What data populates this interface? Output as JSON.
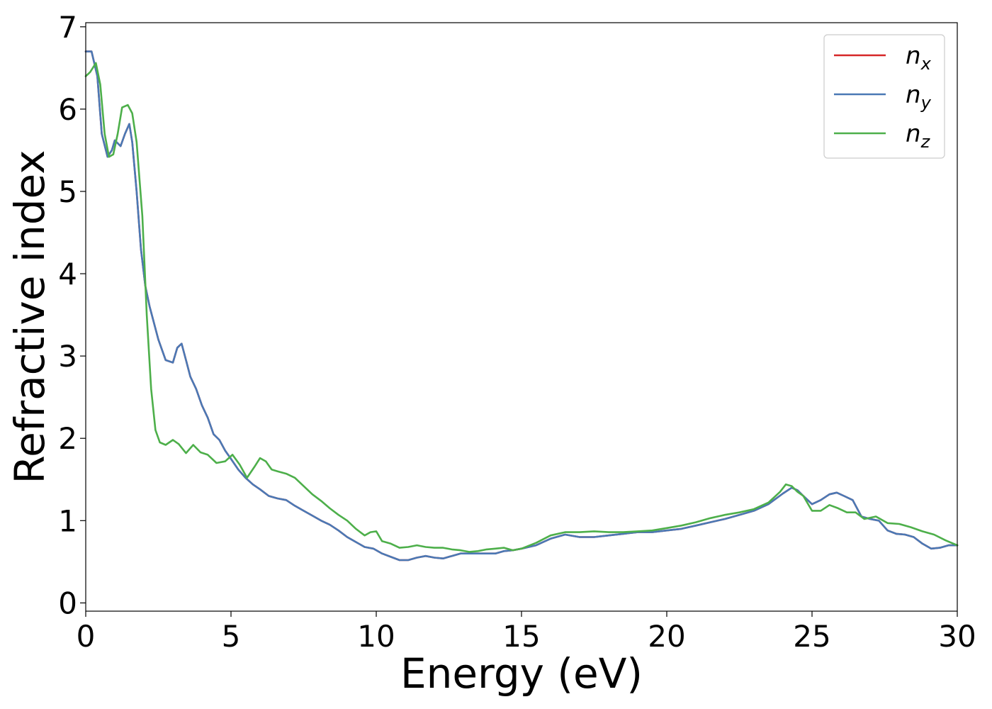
{
  "chart_data": {
    "type": "line",
    "xlabel": "Energy (eV)",
    "ylabel": "Refractive index",
    "xlim": [
      0,
      30
    ],
    "ylim": [
      -0.1,
      7.05
    ],
    "xticks": [
      0,
      5,
      10,
      15,
      20,
      25,
      30
    ],
    "yticks": [
      0,
      1,
      2,
      3,
      4,
      5,
      6,
      7
    ],
    "grid": false,
    "legend_position": "top-right",
    "series": [
      {
        "name": "n_x",
        "label_base": "n",
        "label_sub": "x",
        "color": "#d62728",
        "x": [
          0,
          0.2,
          0.4,
          0.55,
          0.75,
          0.9,
          1.0,
          1.2,
          1.35,
          1.5,
          1.6,
          1.75,
          1.9,
          2.05,
          2.2,
          2.5,
          2.75,
          3.0,
          3.15,
          3.3,
          3.45,
          3.6,
          3.8,
          4.0,
          4.2,
          4.4,
          4.6,
          4.8,
          5.0,
          5.25,
          5.5,
          5.75,
          6.0,
          6.3,
          6.6,
          6.9,
          7.2,
          7.5,
          7.8,
          8.1,
          8.4,
          8.7,
          9.0,
          9.3,
          9.6,
          9.9,
          10.2,
          10.5,
          10.8,
          11.1,
          11.4,
          11.7,
          12.0,
          12.3,
          12.6,
          12.9,
          13.2,
          13.5,
          13.8,
          14.1,
          14.4,
          14.7,
          15.0,
          15.5,
          16.0,
          16.5,
          17.0,
          17.5,
          18.0,
          18.5,
          19.0,
          19.5,
          20.0,
          20.5,
          21.0,
          21.5,
          22.0,
          22.5,
          23.0,
          23.5,
          24.0,
          24.3,
          24.5,
          24.7,
          25.0,
          25.3,
          25.6,
          25.85,
          26.1,
          26.4,
          26.7,
          27.0,
          27.3,
          27.6,
          27.9,
          28.2,
          28.5,
          28.8,
          29.1,
          29.4,
          29.7,
          30.0
        ],
        "values": [
          6.7,
          6.7,
          6.4,
          5.7,
          5.42,
          5.5,
          5.62,
          5.55,
          5.7,
          5.82,
          5.6,
          5.0,
          4.3,
          3.85,
          3.6,
          3.2,
          2.95,
          2.92,
          3.1,
          3.15,
          2.95,
          2.75,
          2.6,
          2.4,
          2.25,
          2.05,
          1.98,
          1.85,
          1.75,
          1.62,
          1.52,
          1.44,
          1.38,
          1.3,
          1.27,
          1.25,
          1.18,
          1.12,
          1.06,
          1.0,
          0.95,
          0.88,
          0.8,
          0.74,
          0.68,
          0.66,
          0.6,
          0.56,
          0.52,
          0.52,
          0.55,
          0.57,
          0.55,
          0.54,
          0.57,
          0.6,
          0.6,
          0.6,
          0.6,
          0.6,
          0.63,
          0.64,
          0.66,
          0.7,
          0.78,
          0.83,
          0.8,
          0.8,
          0.82,
          0.84,
          0.86,
          0.86,
          0.88,
          0.9,
          0.94,
          0.98,
          1.02,
          1.07,
          1.12,
          1.2,
          1.33,
          1.4,
          1.37,
          1.3,
          1.2,
          1.25,
          1.32,
          1.34,
          1.3,
          1.25,
          1.05,
          1.02,
          1.0,
          0.88,
          0.84,
          0.83,
          0.8,
          0.72,
          0.66,
          0.67,
          0.7,
          0.7
        ]
      },
      {
        "name": "n_y",
        "label_base": "n",
        "label_sub": "y",
        "color": "#4a79b5",
        "x": [
          0,
          0.2,
          0.4,
          0.55,
          0.75,
          0.9,
          1.0,
          1.2,
          1.35,
          1.5,
          1.6,
          1.75,
          1.9,
          2.05,
          2.2,
          2.5,
          2.75,
          3.0,
          3.15,
          3.3,
          3.45,
          3.6,
          3.8,
          4.0,
          4.2,
          4.4,
          4.6,
          4.8,
          5.0,
          5.25,
          5.5,
          5.75,
          6.0,
          6.3,
          6.6,
          6.9,
          7.2,
          7.5,
          7.8,
          8.1,
          8.4,
          8.7,
          9.0,
          9.3,
          9.6,
          9.9,
          10.2,
          10.5,
          10.8,
          11.1,
          11.4,
          11.7,
          12.0,
          12.3,
          12.6,
          12.9,
          13.2,
          13.5,
          13.8,
          14.1,
          14.4,
          14.7,
          15.0,
          15.5,
          16.0,
          16.5,
          17.0,
          17.5,
          18.0,
          18.5,
          19.0,
          19.5,
          20.0,
          20.5,
          21.0,
          21.5,
          22.0,
          22.5,
          23.0,
          23.5,
          24.0,
          24.3,
          24.5,
          24.7,
          25.0,
          25.3,
          25.6,
          25.85,
          26.1,
          26.4,
          26.7,
          27.0,
          27.3,
          27.6,
          27.9,
          28.2,
          28.5,
          28.8,
          29.1,
          29.4,
          29.7,
          30.0
        ],
        "values": [
          6.7,
          6.7,
          6.4,
          5.7,
          5.42,
          5.5,
          5.62,
          5.55,
          5.7,
          5.82,
          5.6,
          5.0,
          4.3,
          3.85,
          3.6,
          3.2,
          2.95,
          2.92,
          3.1,
          3.15,
          2.95,
          2.75,
          2.6,
          2.4,
          2.25,
          2.05,
          1.98,
          1.85,
          1.75,
          1.62,
          1.52,
          1.44,
          1.38,
          1.3,
          1.27,
          1.25,
          1.18,
          1.12,
          1.06,
          1.0,
          0.95,
          0.88,
          0.8,
          0.74,
          0.68,
          0.66,
          0.6,
          0.56,
          0.52,
          0.52,
          0.55,
          0.57,
          0.55,
          0.54,
          0.57,
          0.6,
          0.6,
          0.6,
          0.6,
          0.6,
          0.63,
          0.64,
          0.66,
          0.7,
          0.78,
          0.83,
          0.8,
          0.8,
          0.82,
          0.84,
          0.86,
          0.86,
          0.88,
          0.9,
          0.94,
          0.98,
          1.02,
          1.07,
          1.12,
          1.2,
          1.33,
          1.4,
          1.37,
          1.3,
          1.2,
          1.25,
          1.32,
          1.34,
          1.3,
          1.25,
          1.05,
          1.02,
          1.0,
          0.88,
          0.84,
          0.83,
          0.8,
          0.72,
          0.66,
          0.67,
          0.7,
          0.7
        ]
      },
      {
        "name": "n_z",
        "label_base": "n",
        "label_sub": "z",
        "color": "#4daf4a",
        "x": [
          0,
          0.15,
          0.35,
          0.5,
          0.65,
          0.8,
          0.95,
          1.1,
          1.25,
          1.45,
          1.6,
          1.75,
          1.95,
          2.1,
          2.25,
          2.4,
          2.55,
          2.75,
          3.0,
          3.2,
          3.45,
          3.7,
          3.95,
          4.2,
          4.5,
          4.8,
          5.05,
          5.3,
          5.55,
          5.8,
          6.0,
          6.2,
          6.4,
          6.6,
          6.9,
          7.2,
          7.5,
          7.8,
          8.1,
          8.4,
          8.7,
          9.0,
          9.3,
          9.6,
          9.8,
          10.0,
          10.2,
          10.5,
          10.8,
          11.1,
          11.4,
          11.7,
          12.0,
          12.3,
          12.6,
          12.9,
          13.2,
          13.5,
          13.8,
          14.1,
          14.4,
          14.7,
          15.0,
          15.5,
          16.0,
          16.5,
          17.0,
          17.5,
          18.0,
          18.5,
          19.0,
          19.5,
          20.0,
          20.5,
          21.0,
          21.5,
          22.0,
          22.5,
          23.0,
          23.5,
          23.9,
          24.1,
          24.3,
          24.5,
          24.7,
          25.0,
          25.3,
          25.6,
          25.9,
          26.2,
          26.5,
          26.8,
          27.2,
          27.6,
          28.0,
          28.4,
          28.8,
          29.2,
          29.6,
          30.0
        ],
        "values": [
          6.4,
          6.45,
          6.56,
          6.3,
          5.7,
          5.42,
          5.45,
          5.7,
          6.02,
          6.05,
          5.95,
          5.6,
          4.7,
          3.5,
          2.6,
          2.1,
          1.95,
          1.92,
          1.98,
          1.93,
          1.82,
          1.92,
          1.83,
          1.8,
          1.7,
          1.72,
          1.8,
          1.68,
          1.52,
          1.65,
          1.76,
          1.72,
          1.62,
          1.6,
          1.57,
          1.52,
          1.42,
          1.32,
          1.24,
          1.15,
          1.07,
          1.0,
          0.9,
          0.82,
          0.86,
          0.87,
          0.75,
          0.72,
          0.67,
          0.68,
          0.7,
          0.68,
          0.67,
          0.67,
          0.65,
          0.64,
          0.62,
          0.63,
          0.65,
          0.66,
          0.67,
          0.64,
          0.66,
          0.73,
          0.82,
          0.86,
          0.86,
          0.87,
          0.86,
          0.86,
          0.87,
          0.88,
          0.91,
          0.94,
          0.98,
          1.03,
          1.07,
          1.1,
          1.14,
          1.22,
          1.35,
          1.44,
          1.42,
          1.35,
          1.3,
          1.12,
          1.12,
          1.19,
          1.15,
          1.1,
          1.1,
          1.02,
          1.05,
          0.97,
          0.96,
          0.92,
          0.87,
          0.83,
          0.76,
          0.7
        ]
      }
    ]
  }
}
